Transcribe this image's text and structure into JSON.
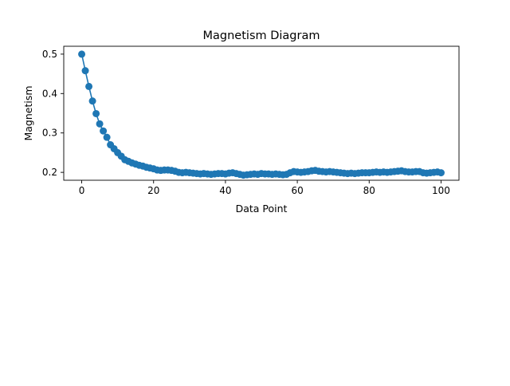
{
  "chart_data": {
    "type": "line",
    "title": "Magnetism Diagram",
    "xlabel": "Data Point",
    "ylabel": "Magnetism",
    "xlim": [
      -5,
      105
    ],
    "ylim": [
      0.18,
      0.52
    ],
    "xticks": [
      0,
      20,
      40,
      60,
      80,
      100
    ],
    "yticks": [
      0.2,
      0.3,
      0.4,
      0.5
    ],
    "xtick_labels": [
      "0",
      "20",
      "40",
      "60",
      "80",
      "100"
    ],
    "ytick_labels": [
      "0.2",
      "0.3",
      "0.4",
      "0.5"
    ],
    "grid": false,
    "series": [
      {
        "color": "#1f77b4",
        "marker": "circle",
        "x": [
          0,
          1,
          2,
          3,
          4,
          5,
          6,
          7,
          8,
          9,
          10,
          11,
          12,
          13,
          14,
          15,
          16,
          17,
          18,
          19,
          20,
          21,
          22,
          23,
          24,
          25,
          26,
          27,
          28,
          29,
          30,
          31,
          32,
          33,
          34,
          35,
          36,
          37,
          38,
          39,
          40,
          41,
          42,
          43,
          44,
          45,
          46,
          47,
          48,
          49,
          50,
          51,
          52,
          53,
          54,
          55,
          56,
          57,
          58,
          59,
          60,
          61,
          62,
          63,
          64,
          65,
          66,
          67,
          68,
          69,
          70,
          71,
          72,
          73,
          74,
          75,
          76,
          77,
          78,
          79,
          80,
          81,
          82,
          83,
          84,
          85,
          86,
          87,
          88,
          89,
          90,
          91,
          92,
          93,
          94,
          95,
          96,
          97,
          98,
          99,
          100
        ],
        "y": [
          0.5,
          0.458,
          0.418,
          0.381,
          0.349,
          0.323,
          0.305,
          0.289,
          0.27,
          0.26,
          0.25,
          0.241,
          0.232,
          0.228,
          0.224,
          0.221,
          0.218,
          0.216,
          0.213,
          0.211,
          0.209,
          0.206,
          0.205,
          0.206,
          0.206,
          0.205,
          0.203,
          0.2,
          0.199,
          0.2,
          0.199,
          0.198,
          0.197,
          0.196,
          0.197,
          0.196,
          0.195,
          0.196,
          0.197,
          0.197,
          0.196,
          0.198,
          0.199,
          0.197,
          0.195,
          0.193,
          0.194,
          0.195,
          0.196,
          0.195,
          0.197,
          0.196,
          0.196,
          0.195,
          0.196,
          0.195,
          0.194,
          0.195,
          0.199,
          0.202,
          0.201,
          0.2,
          0.201,
          0.202,
          0.204,
          0.205,
          0.203,
          0.202,
          0.201,
          0.202,
          0.201,
          0.2,
          0.199,
          0.198,
          0.197,
          0.198,
          0.197,
          0.198,
          0.199,
          0.199,
          0.199,
          0.2,
          0.201,
          0.2,
          0.201,
          0.2,
          0.201,
          0.202,
          0.203,
          0.204,
          0.202,
          0.201,
          0.201,
          0.202,
          0.202,
          0.199,
          0.198,
          0.199,
          0.2,
          0.201,
          0.199
        ]
      }
    ]
  }
}
